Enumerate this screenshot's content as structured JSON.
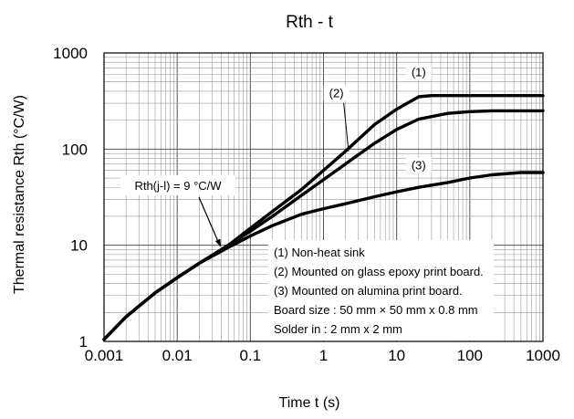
{
  "chart_data": {
    "type": "line",
    "title": "Rth - t",
    "xlabel": "Time  t (s)",
    "ylabel": "Thermal resistance  Rth (°C/W)",
    "xscale": "log",
    "yscale": "log",
    "xlim": [
      0.001,
      1000
    ],
    "ylim": [
      1,
      1000
    ],
    "grid": true,
    "x_ticks": [
      "0.001",
      "0.01",
      "0.1",
      "1",
      "10",
      "100",
      "1000"
    ],
    "y_ticks": [
      "1",
      "10",
      "100",
      "1000"
    ],
    "series": [
      {
        "name": "(1)",
        "x": [
          0.001,
          0.002,
          0.005,
          0.01,
          0.02,
          0.05,
          0.1,
          0.2,
          0.5,
          1,
          2,
          5,
          10,
          15,
          20,
          30,
          100,
          1000
        ],
        "y": [
          1.05,
          1.8,
          3.2,
          4.6,
          6.5,
          10,
          15,
          22.5,
          38,
          60,
          95,
          180,
          260,
          310,
          350,
          360,
          360,
          360
        ]
      },
      {
        "name": "(2)",
        "x": [
          0.001,
          0.002,
          0.005,
          0.01,
          0.02,
          0.05,
          0.1,
          0.2,
          0.5,
          1,
          2,
          5,
          10,
          20,
          50,
          100,
          200,
          1000
        ],
        "y": [
          1.05,
          1.8,
          3.2,
          4.6,
          6.5,
          10,
          14,
          20,
          33,
          48,
          70,
          115,
          160,
          205,
          235,
          245,
          250,
          250
        ]
      },
      {
        "name": "(3)",
        "x": [
          0.001,
          0.002,
          0.005,
          0.01,
          0.02,
          0.05,
          0.1,
          0.2,
          0.5,
          1,
          2,
          5,
          10,
          20,
          50,
          100,
          200,
          500,
          1000
        ],
        "y": [
          1.05,
          1.8,
          3.2,
          4.6,
          6.5,
          9.5,
          12.5,
          16,
          21,
          24,
          27,
          32,
          36,
          40,
          45,
          50,
          54,
          57,
          57
        ]
      }
    ],
    "curve_labels": [
      {
        "text": "(1)",
        "x": 20,
        "y": 600
      },
      {
        "text": "(2)",
        "x": 1.5,
        "y": 360
      },
      {
        "text": "(3)",
        "x": 20,
        "y": 64
      }
    ],
    "annotations": [
      {
        "text": "Rth(j-l) = 9 °C/W",
        "point_x": 0.042,
        "point_y": 9
      }
    ],
    "legend": {
      "placement": "bottom-right",
      "lines": [
        "(1) Non-heat sink",
        "(2) Mounted on glass epoxy print board.",
        "(3) Mounted on alumina print board.",
        "Board size : 50 mm × 50 mm x 0.8 mm",
        "Solder in : 2 mm x 2 mm"
      ]
    }
  }
}
